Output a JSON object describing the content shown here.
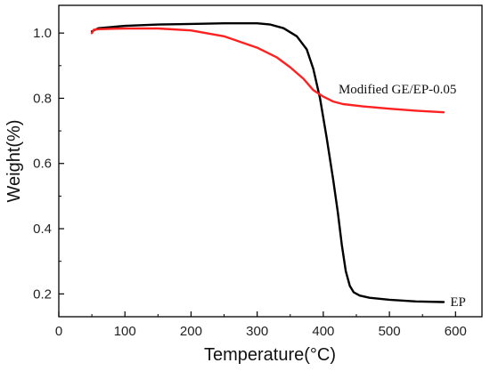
{
  "chart_data": {
    "type": "line",
    "title": "",
    "xlabel": "Temperature(°C)",
    "ylabel": "Weight(%)",
    "xlim": [
      0,
      640
    ],
    "ylim": [
      0.13,
      1.085
    ],
    "x_ticks": [
      0,
      100,
      200,
      300,
      400,
      500,
      600
    ],
    "y_ticks": [
      0.2,
      0.4,
      0.6,
      0.8,
      1.0
    ],
    "x_tick_labels": [
      "0",
      "100",
      "200",
      "300",
      "400",
      "500",
      "600"
    ],
    "y_tick_labels": [
      "0.2",
      "0.4",
      "0.6",
      "0.8",
      "1.0"
    ],
    "grid": false,
    "legend": "none",
    "series": [
      {
        "name": "EP",
        "color": "#000000",
        "points": [
          [
            50,
            1.005
          ],
          [
            60,
            1.015
          ],
          [
            100,
            1.022
          ],
          [
            150,
            1.026
          ],
          [
            200,
            1.028
          ],
          [
            250,
            1.03
          ],
          [
            300,
            1.03
          ],
          [
            320,
            1.026
          ],
          [
            340,
            1.015
          ],
          [
            360,
            0.99
          ],
          [
            375,
            0.95
          ],
          [
            385,
            0.89
          ],
          [
            395,
            0.8
          ],
          [
            405,
            0.68
          ],
          [
            415,
            0.55
          ],
          [
            422,
            0.45
          ],
          [
            428,
            0.35
          ],
          [
            434,
            0.27
          ],
          [
            440,
            0.225
          ],
          [
            446,
            0.205
          ],
          [
            455,
            0.195
          ],
          [
            470,
            0.188
          ],
          [
            500,
            0.182
          ],
          [
            540,
            0.177
          ],
          [
            582,
            0.175
          ]
        ]
      },
      {
        "name": "Modified GE/EP-0.05",
        "color": "#ff2020",
        "points": [
          [
            50,
            1.0
          ],
          [
            53,
            1.01
          ],
          [
            60,
            1.012
          ],
          [
            100,
            1.014
          ],
          [
            150,
            1.014
          ],
          [
            200,
            1.008
          ],
          [
            250,
            0.99
          ],
          [
            300,
            0.955
          ],
          [
            330,
            0.925
          ],
          [
            350,
            0.895
          ],
          [
            370,
            0.86
          ],
          [
            385,
            0.825
          ],
          [
            400,
            0.805
          ],
          [
            415,
            0.79
          ],
          [
            430,
            0.782
          ],
          [
            460,
            0.775
          ],
          [
            500,
            0.768
          ],
          [
            540,
            0.762
          ],
          [
            582,
            0.757
          ]
        ]
      }
    ],
    "annotations": [
      {
        "text": "Modified GE/EP-0.05",
        "x": 423,
        "y": 0.829
      },
      {
        "text": "EP",
        "x": 592,
        "y": 0.177
      }
    ]
  }
}
